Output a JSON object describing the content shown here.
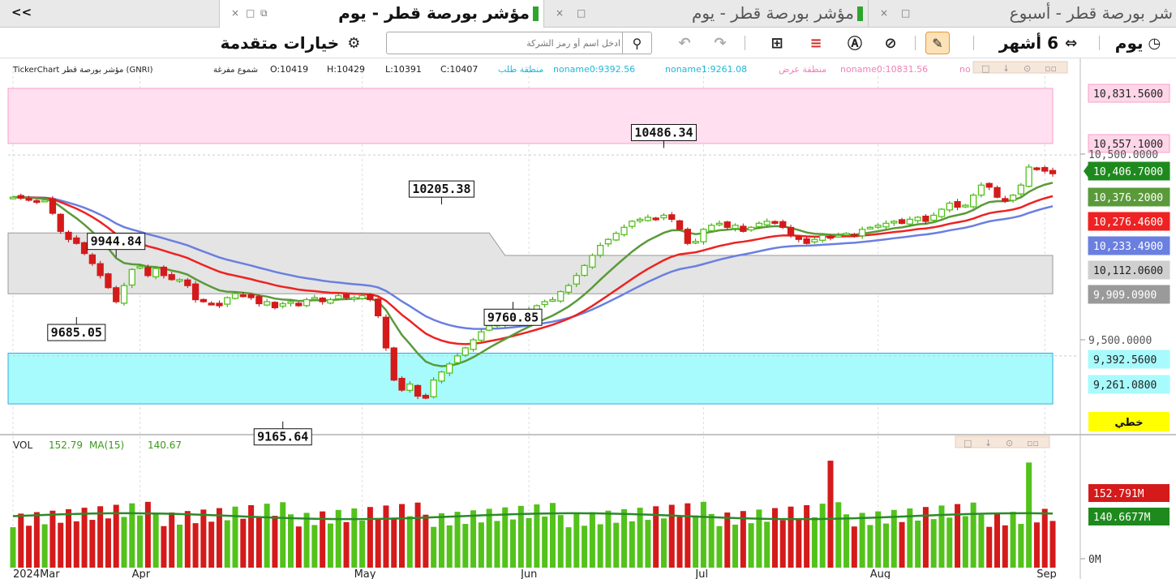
{
  "tabs": {
    "collapse_label": "<<",
    "items": [
      {
        "title": "مؤشر بورصة قطر - يوم",
        "active": true
      },
      {
        "title": "مؤشر بورصة قطر - يوم",
        "active": false
      },
      {
        "title": "شر بورصة قطر - أسبوع",
        "active": false
      }
    ],
    "close_glyph": "×",
    "max_glyph": "□"
  },
  "toolbar": {
    "interval_label": "يوم",
    "period_label": "6 أشهر",
    "advanced_options_label": "خيارات متقدمة",
    "search_placeholder": "ادخل اسم أو رمز الشركة",
    "icons": [
      "clock-icon",
      "compare-icon",
      "draw-pen-icon",
      "indicator-icon",
      "alert-icon",
      "levels-icon",
      "binoculars-icon",
      "redo-icon",
      "undo-icon",
      "search-icon",
      "gear-icon"
    ]
  },
  "chart_info": {
    "title": "TickerChart مؤشر بورصة قطر (GNRI)",
    "chart_style": "شموع مفرغة",
    "open": "O:10419",
    "high": "H:10429",
    "low": "L:10391",
    "close": "C:10407",
    "demand_label": "منطقة طلب",
    "noname0_demand": "noname0:9392.56",
    "noname1_demand": "noname1:9261.08",
    "supply_label": "منطقة عرض",
    "noname0_supply": "noname0:10831.56",
    "noname_trunc": "no"
  },
  "volume_info": {
    "label": "VOL",
    "vol_value": "152.79",
    "ma_label": "MA(15)",
    "ma_value": "140.67"
  },
  "colors": {
    "up": "#53c21b",
    "down": "#d41a1a",
    "ema_green": "#5a9a3a",
    "ema_red": "#ee2222",
    "ema_blue": "#6a7fe0",
    "supply_zone": "#ffdff0",
    "demand_zone": "#a8fbfd",
    "range_band": "#e4e4e4",
    "vol_ma": "#2a8a2a"
  },
  "chart_data": {
    "type": "candlestick",
    "symbol": "GNRI",
    "timeframe": "daily",
    "price_range": [
      9100,
      10900
    ],
    "x_labels": [
      "2024Mar",
      "Apr",
      "May",
      "Jun",
      "Jul",
      "Aug",
      "Sep"
    ],
    "price_tags": [
      {
        "text": "10,831.5600",
        "bg": "#ffd6e8",
        "fg": "#222"
      },
      {
        "text": "10,557.1000",
        "bg": "#ffd6e8",
        "fg": "#222"
      },
      {
        "text": "10,500.0000",
        "bg": "#ffffff",
        "fg": "#555"
      },
      {
        "text": "10,406.7000",
        "bg": "#1e8a1e",
        "fg": "#fff"
      },
      {
        "text": "10,376.2000",
        "bg": "#5a9a3a",
        "fg": "#fff"
      },
      {
        "text": "10,276.4600",
        "bg": "#ee2222",
        "fg": "#fff"
      },
      {
        "text": "10,233.4900",
        "bg": "#6a7fe0",
        "fg": "#fff"
      },
      {
        "text": "10,112.0600",
        "bg": "#cfcfcf",
        "fg": "#222"
      },
      {
        "text": "9,909.0900",
        "bg": "#9a9a9a",
        "fg": "#fff"
      },
      {
        "text": "9,500.0000",
        "bg": "#ffffff",
        "fg": "#555"
      },
      {
        "text": "9,392.5600",
        "bg": "#a8fbfd",
        "fg": "#222"
      },
      {
        "text": "9,261.0800",
        "bg": "#a8fbfd",
        "fg": "#222"
      }
    ],
    "linear_label": "خطي",
    "supply_zone": [
      10557.1,
      10831.56
    ],
    "demand_zone": [
      9261.08,
      9392.56
    ],
    "range_band": {
      "upper": [
        10112.06,
        10112.06,
        10112.06,
        10112.06,
        10000,
        9909.09,
        9909.09
      ],
      "lower": [
        9909.09,
        9909.09,
        9909.09,
        9909.09,
        9909.09,
        9909.09,
        9909.09
      ]
    },
    "annotations": [
      {
        "text": "9944.84",
        "price": 9944.84,
        "kind": "high"
      },
      {
        "text": "9685.05",
        "price": 9685.05,
        "kind": "low"
      },
      {
        "text": "9165.64",
        "price": 9165.64,
        "kind": "low"
      },
      {
        "text": "10205.38",
        "price": 10205.38,
        "kind": "high"
      },
      {
        "text": "9760.85",
        "price": 9760.85,
        "kind": "low"
      },
      {
        "text": "10486.34",
        "price": 10486.34,
        "kind": "high"
      }
    ],
    "annotation_bars": [
      13,
      8,
      34,
      54,
      63,
      82
    ],
    "closes": [
      10290,
      10285,
      10280,
      10270,
      10275,
      10210,
      10120,
      10080,
      10060,
      10010,
      9960,
      9900,
      9840,
      9770,
      9850,
      9930,
      9945,
      9900,
      9935,
      9900,
      9880,
      9880,
      9850,
      9780,
      9770,
      9760,
      9750,
      9790,
      9810,
      9800,
      9790,
      9760,
      9770,
      9740,
      9760,
      9770,
      9750,
      9780,
      9790,
      9770,
      9780,
      9800,
      9790,
      9790,
      9800,
      9780,
      9700,
      9540,
      9380,
      9330,
      9360,
      9300,
      9290,
      9380,
      9420,
      9460,
      9500,
      9540,
      9580,
      9620,
      9650,
      9660,
      9680,
      9700,
      9720,
      9730,
      9750,
      9770,
      9780,
      9820,
      9850,
      9900,
      9950,
      10000,
      10050,
      10080,
      10110,
      10140,
      10170,
      10180,
      10190,
      10180,
      10200,
      10180,
      10130,
      10060,
      10070,
      10130,
      10150,
      10160,
      10140,
      10150,
      10120,
      10140,
      10160,
      10170,
      10160,
      10140,
      10100,
      10080,
      10060,
      10080,
      10100,
      10090,
      10100,
      10110,
      10100,
      10130,
      10140,
      10150,
      10160,
      10170,
      10160,
      10180,
      10190,
      10170,
      10200,
      10230,
      10260,
      10240,
      10250,
      10300,
      10350,
      10340,
      10290,
      10270,
      10300,
      10350,
      10440,
      10430,
      10420,
      10407
    ],
    "volume": {
      "ma15": 140.67,
      "last": 152.79,
      "tags": [
        {
          "text": "152.791M",
          "bg": "#d41a1a",
          "fg": "#fff"
        },
        {
          "text": "140.6677M",
          "bg": "#1e8a1e",
          "fg": "#fff"
        },
        {
          "text": "0M",
          "bg": "#ffffff",
          "fg": "#333"
        }
      ]
    }
  }
}
